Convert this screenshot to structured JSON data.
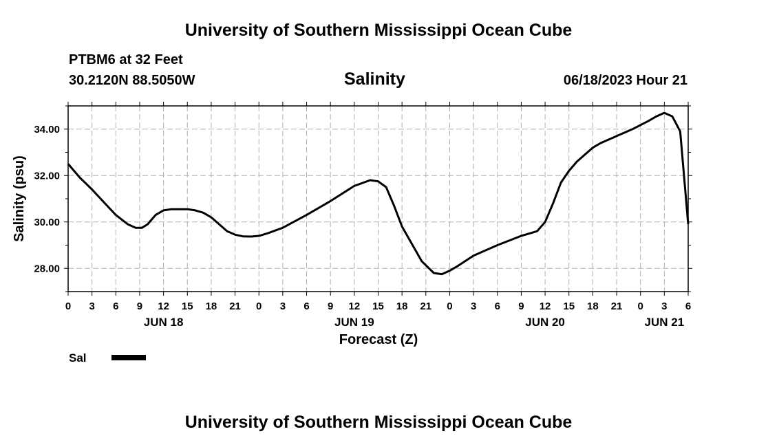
{
  "header": {
    "title_top": "University of Southern Mississippi Ocean Cube",
    "station": "PTBM6 at 32 Feet",
    "coords": "30.2120N  88.5050W",
    "datetime": "06/18/2023 Hour 21",
    "title_bottom": "University of Southern Mississippi Ocean Cube"
  },
  "legend": {
    "label": "Sal",
    "line_color": "#000000"
  },
  "chart_data": {
    "type": "line",
    "title": "Salinity",
    "xlabel": "Forecast (Z)",
    "ylabel": "Salinity (psu)",
    "x_unit": "hours from 2023-06-18 00Z",
    "xlim": [
      0,
      78
    ],
    "ylim": [
      27.0,
      35.0
    ],
    "x_tick_labels": [
      "0",
      "3",
      "6",
      "9",
      "12",
      "15",
      "18",
      "21",
      "0",
      "3",
      "6",
      "9",
      "12",
      "15",
      "18",
      "21",
      "0",
      "3",
      "6",
      "9",
      "12",
      "15",
      "18",
      "21",
      "0",
      "3",
      "6"
    ],
    "date_labels": [
      {
        "label": "JUN 18",
        "x": 12
      },
      {
        "label": "JUN 19",
        "x": 36
      },
      {
        "label": "JUN 20",
        "x": 60
      },
      {
        "label": "JUN 21",
        "x": 75
      }
    ],
    "y_ticks": [
      28.0,
      30.0,
      32.0,
      34.0
    ],
    "y_tick_labels": [
      "28.00",
      "30.00",
      "32.00",
      "34.00"
    ],
    "grid": true,
    "series": [
      {
        "name": "Sal",
        "color": "#000000",
        "x": [
          0,
          1.5,
          3,
          4.5,
          6,
          7.5,
          8.5,
          9.3,
          10,
          11,
          12,
          13,
          14,
          15,
          16,
          17,
          18,
          19,
          20,
          21,
          22,
          23,
          24,
          25,
          27,
          30,
          33,
          36,
          38,
          39,
          40,
          41,
          42,
          43,
          44.5,
          46,
          47,
          48,
          49,
          51,
          54,
          57,
          59,
          60,
          61,
          62,
          63,
          64,
          65,
          66,
          67,
          69,
          71,
          73,
          74,
          75,
          76,
          77,
          78
        ],
        "y": [
          32.5,
          31.9,
          31.4,
          30.85,
          30.3,
          29.9,
          29.75,
          29.75,
          29.9,
          30.3,
          30.5,
          30.55,
          30.55,
          30.55,
          30.5,
          30.4,
          30.2,
          29.9,
          29.6,
          29.45,
          29.38,
          29.37,
          29.4,
          29.5,
          29.75,
          30.3,
          30.9,
          31.55,
          31.8,
          31.75,
          31.5,
          30.7,
          29.8,
          29.2,
          28.3,
          27.8,
          27.75,
          27.9,
          28.1,
          28.55,
          29.0,
          29.4,
          29.6,
          30.0,
          30.8,
          31.7,
          32.2,
          32.6,
          32.9,
          33.2,
          33.4,
          33.7,
          34.0,
          34.35,
          34.55,
          34.7,
          34.55,
          33.9,
          29.9
        ]
      }
    ]
  }
}
